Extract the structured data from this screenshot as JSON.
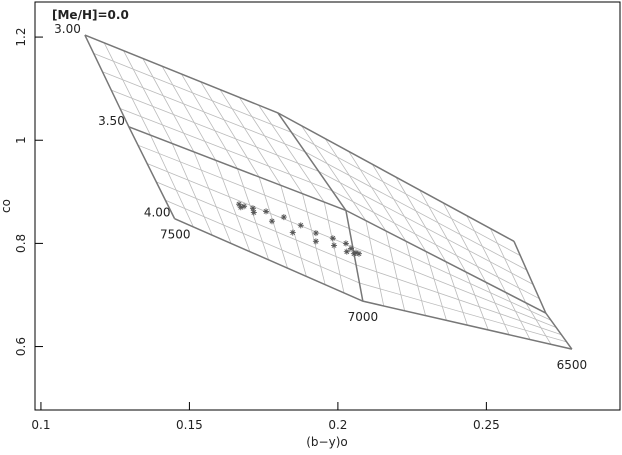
{
  "chart_data": {
    "type": "scatter",
    "title": "[Me/H]=0.0",
    "x_label": "(b−y)o",
    "y_label": "co",
    "xlim": [
      0.098,
      0.295
    ],
    "ylim": [
      0.477,
      1.268
    ],
    "xticks": [
      0.1,
      0.15,
      0.2,
      0.25
    ],
    "yticks": [
      0.6,
      0.8,
      1,
      1.2
    ],
    "grid_color": "#777",
    "fine_grid_color": "#bbb",
    "grid_lines": [
      {
        "name": "3.00",
        "x": [
          0.1148,
          0.1798,
          0.2593
        ],
        "y": [
          1.204,
          1.053,
          0.804
        ]
      },
      {
        "name": "3.50",
        "x": [
          0.1296,
          0.2027,
          0.27
        ],
        "y": [
          1.026,
          0.864,
          0.665
        ]
      },
      {
        "name": "4.00",
        "x": [
          0.145,
          0.2084,
          0.2788
        ],
        "y": [
          0.848,
          0.688,
          0.595
        ]
      }
    ],
    "cross_line_labels": [
      "7500",
      "7000",
      "6500"
    ],
    "points": {
      "color": "#555",
      "x": [
        0.1667,
        0.1673,
        0.1684,
        0.1714,
        0.1717,
        0.1758,
        0.1778,
        0.1818,
        0.1848,
        0.1875,
        0.1926,
        0.1926,
        0.1983,
        0.1987,
        0.2027,
        0.203,
        0.2044,
        0.2054,
        0.2061,
        0.2071
      ],
      "y": [
        0.876,
        0.87,
        0.872,
        0.868,
        0.86,
        0.862,
        0.843,
        0.851,
        0.821,
        0.835,
        0.82,
        0.804,
        0.81,
        0.796,
        0.8,
        0.784,
        0.79,
        0.78,
        0.782,
        0.78
      ]
    }
  }
}
